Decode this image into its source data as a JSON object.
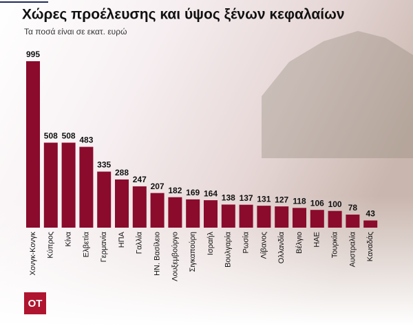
{
  "chart_data": {
    "type": "bar",
    "title": "Χώρες προέλευσης και ύψος ξένων κεφαλαίων",
    "subtitle": "Τα ποσά είναι σε εκατ. ευρώ",
    "categories": [
      "Χονγκ-Κονγκ",
      "Κύπρος",
      "Κίνα",
      "Ελβετία",
      "Γερμανία",
      "ΗΠΑ",
      "Γαλλία",
      "ΗΝ. Βασίλειο",
      "Λουξεμβούργο",
      "Σιγκαπούρη",
      "Ισραήλ",
      "Βουλγαρία",
      "Ρωσία",
      "Λίβανος",
      "Ολλανδία",
      "Βέλγιο",
      "ΗΑΕ",
      "Τουρκία",
      "Αυστραλία",
      "Καναδάς"
    ],
    "values": [
      995,
      508,
      508,
      483,
      335,
      288,
      247,
      207,
      182,
      169,
      164,
      138,
      137,
      131,
      127,
      118,
      106,
      100,
      78,
      43
    ],
    "color": "#8a0b2c"
  },
  "logo": "ΟΤ"
}
